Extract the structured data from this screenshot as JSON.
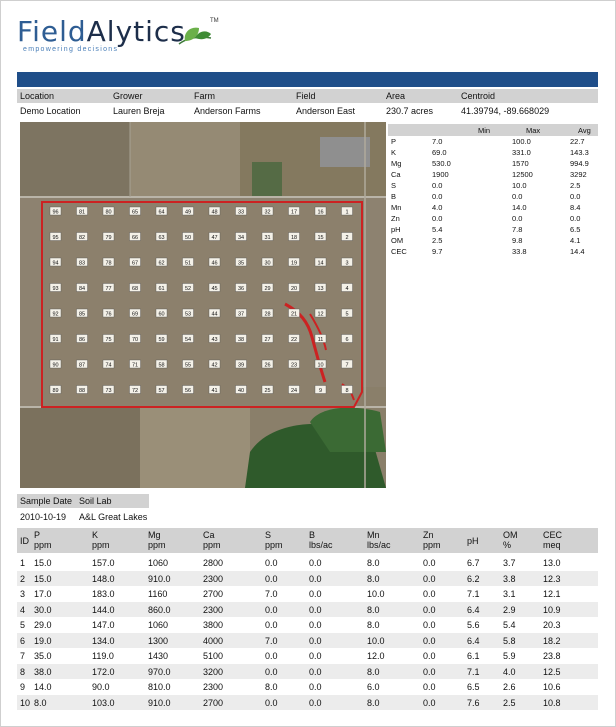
{
  "logo": {
    "word_a": "Field",
    "word_b": "Alytics",
    "tagline": "empowering decisions",
    "tm": "TM"
  },
  "info": {
    "headers": [
      "Location",
      "Grower",
      "Farm",
      "Field",
      "Area",
      "Centroid"
    ],
    "values": [
      "Demo Location",
      "Lauren Breja",
      "Anderson Farms",
      "Anderson East",
      "230.7 acres",
      "41.39794, -89.668029"
    ]
  },
  "stats": {
    "headers": [
      "Min",
      "Max",
      "Avg"
    ],
    "rows": [
      {
        "name": "P",
        "min": "7.0",
        "max": "100.0",
        "avg": "22.7"
      },
      {
        "name": "K",
        "min": "69.0",
        "max": "331.0",
        "avg": "143.3"
      },
      {
        "name": "Mg",
        "min": "530.0",
        "max": "1570",
        "avg": "994.9"
      },
      {
        "name": "Ca",
        "min": "1900",
        "max": "12500",
        "avg": "3292"
      },
      {
        "name": "S",
        "min": "0.0",
        "max": "10.0",
        "avg": "2.5"
      },
      {
        "name": "B",
        "min": "0.0",
        "max": "0.0",
        "avg": "0.0"
      },
      {
        "name": "Mn",
        "min": "4.0",
        "max": "14.0",
        "avg": "8.4"
      },
      {
        "name": "Zn",
        "min": "0.0",
        "max": "0.0",
        "avg": "0.0"
      },
      {
        "name": "pH",
        "min": "5.4",
        "max": "7.8",
        "avg": "6.5"
      },
      {
        "name": "OM",
        "min": "2.5",
        "max": "9.8",
        "avg": "4.1"
      },
      {
        "name": "CEC",
        "min": "9.7",
        "max": "33.8",
        "avg": "14.4"
      }
    ]
  },
  "map": {
    "boundary_color": "#cc2222",
    "label_rows": [
      [
        "96",
        "81",
        "80",
        "65",
        "64",
        "49",
        "48",
        "33",
        "32",
        "17",
        "16",
        "1"
      ],
      [
        "95",
        "82",
        "79",
        "66",
        "63",
        "50",
        "47",
        "34",
        "31",
        "18",
        "15",
        "2"
      ],
      [
        "94",
        "83",
        "78",
        "67",
        "62",
        "51",
        "46",
        "35",
        "30",
        "19",
        "14",
        "3"
      ],
      [
        "93",
        "84",
        "77",
        "68",
        "61",
        "52",
        "45",
        "36",
        "29",
        "20",
        "13",
        "4"
      ],
      [
        "92",
        "85",
        "76",
        "69",
        "60",
        "53",
        "44",
        "37",
        "28",
        "21",
        "12",
        "5"
      ],
      [
        "91",
        "86",
        "75",
        "70",
        "59",
        "54",
        "43",
        "38",
        "27",
        "22",
        "11",
        "6"
      ],
      [
        "90",
        "87",
        "74",
        "71",
        "58",
        "55",
        "42",
        "39",
        "26",
        "23",
        "10",
        "7"
      ],
      [
        "89",
        "88",
        "73",
        "72",
        "57",
        "56",
        "41",
        "40",
        "25",
        "24",
        "9",
        "8"
      ]
    ]
  },
  "sample": {
    "headers": [
      "Sample Date",
      "Soil Lab"
    ],
    "values": [
      "2010-10-19",
      "A&L Great Lakes"
    ]
  },
  "data_table": {
    "headers": [
      {
        "top": "ID",
        "unit": ""
      },
      {
        "top": "P",
        "unit": "ppm"
      },
      {
        "top": "K",
        "unit": "ppm"
      },
      {
        "top": "Mg",
        "unit": "ppm"
      },
      {
        "top": "Ca",
        "unit": "ppm"
      },
      {
        "top": "S",
        "unit": "ppm"
      },
      {
        "top": "B",
        "unit": "lbs/ac"
      },
      {
        "top": "Mn",
        "unit": "lbs/ac"
      },
      {
        "top": "Zn",
        "unit": "ppm"
      },
      {
        "top": "pH",
        "unit": ""
      },
      {
        "top": "OM",
        "unit": "%"
      },
      {
        "top": "CEC",
        "unit": "meq"
      }
    ],
    "rows": [
      [
        "1",
        "15.0",
        "157.0",
        "1060",
        "2800",
        "0.0",
        "0.0",
        "8.0",
        "0.0",
        "6.7",
        "3.7",
        "13.0"
      ],
      [
        "2",
        "15.0",
        "148.0",
        "910.0",
        "2300",
        "0.0",
        "0.0",
        "8.0",
        "0.0",
        "6.2",
        "3.8",
        "12.3"
      ],
      [
        "3",
        "17.0",
        "183.0",
        "1160",
        "2700",
        "7.0",
        "0.0",
        "10.0",
        "0.0",
        "7.1",
        "3.1",
        "12.1"
      ],
      [
        "4",
        "30.0",
        "144.0",
        "860.0",
        "2300",
        "0.0",
        "0.0",
        "8.0",
        "0.0",
        "6.4",
        "2.9",
        "10.9"
      ],
      [
        "5",
        "29.0",
        "147.0",
        "1060",
        "3800",
        "0.0",
        "0.0",
        "8.0",
        "0.0",
        "5.6",
        "5.4",
        "20.3"
      ],
      [
        "6",
        "19.0",
        "134.0",
        "1300",
        "4000",
        "7.0",
        "0.0",
        "10.0",
        "0.0",
        "6.4",
        "5.8",
        "18.2"
      ],
      [
        "7",
        "35.0",
        "119.0",
        "1430",
        "5100",
        "0.0",
        "0.0",
        "12.0",
        "0.0",
        "6.1",
        "5.9",
        "23.8"
      ],
      [
        "8",
        "38.0",
        "172.0",
        "970.0",
        "3200",
        "0.0",
        "0.0",
        "8.0",
        "0.0",
        "7.1",
        "4.0",
        "12.5"
      ],
      [
        "9",
        "14.0",
        "90.0",
        "810.0",
        "2300",
        "8.0",
        "0.0",
        "6.0",
        "0.0",
        "6.5",
        "2.6",
        "10.6"
      ],
      [
        "10",
        "8.0",
        "103.0",
        "910.0",
        "2700",
        "0.0",
        "0.0",
        "8.0",
        "0.0",
        "7.6",
        "2.5",
        "10.8"
      ]
    ]
  }
}
